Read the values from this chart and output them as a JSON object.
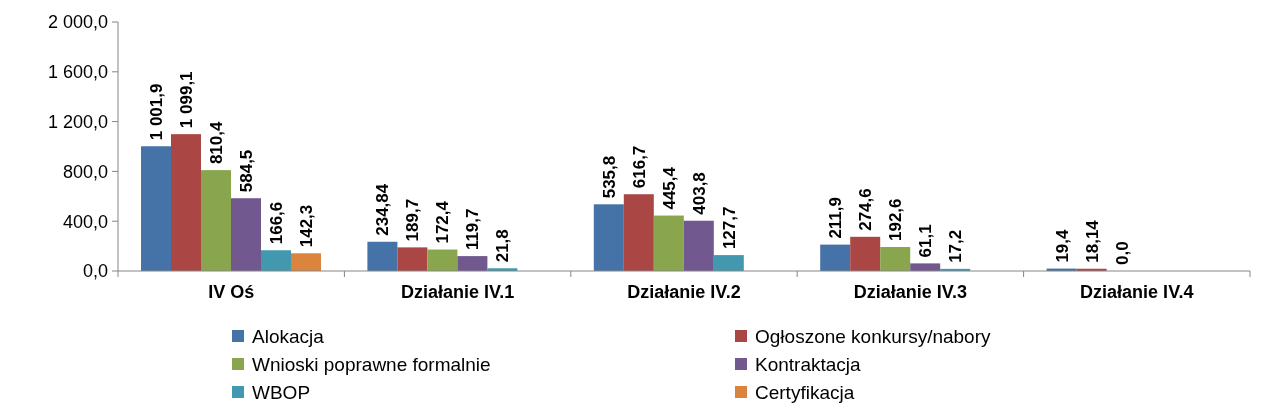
{
  "chart_data": {
    "type": "bar",
    "categories": [
      "IV Oś",
      "Działanie IV.1",
      "Działanie IV.2",
      "Działanie IV.3",
      "Działanie IV.4"
    ],
    "series": [
      {
        "name": "Alokacja",
        "color": "#4572a7",
        "values": [
          1001.9,
          234.84,
          535.8,
          211.9,
          19.4
        ],
        "value_labels": [
          "1 001,9",
          "234,84",
          "535,8",
          "211,9",
          "19,4"
        ]
      },
      {
        "name": "Ogłoszone konkursy/nabory",
        "color": "#aa4643",
        "values": [
          1099.1,
          189.7,
          616.7,
          274.6,
          18.14
        ],
        "value_labels": [
          "1 099,1",
          "189,7",
          "616,7",
          "274,6",
          "18,14"
        ]
      },
      {
        "name": "Wnioski poprawne formalnie",
        "color": "#89a54e",
        "values": [
          810.4,
          172.4,
          445.4,
          192.6,
          0
        ],
        "value_labels": [
          "810,4",
          "172,4",
          "445,4",
          "192,6",
          "0,0"
        ]
      },
      {
        "name": "Kontraktacja",
        "color": "#71588f",
        "values": [
          584.5,
          119.7,
          403.8,
          61.1,
          null
        ],
        "value_labels": [
          "584,5",
          "119,7",
          "403,8",
          "61,1",
          null
        ]
      },
      {
        "name": "WBOP",
        "color": "#4198af",
        "values": [
          166.6,
          21.8,
          127.7,
          17.2,
          null
        ],
        "value_labels": [
          "166,6",
          "21,8",
          "127,7",
          "17,2",
          null
        ]
      },
      {
        "name": "Certyfikacja",
        "color": "#db843d",
        "values": [
          142.3,
          null,
          null,
          null,
          null
        ],
        "value_labels": [
          "142,3",
          null,
          null,
          null,
          null
        ]
      }
    ],
    "ylim": [
      0,
      2000
    ],
    "yticks": [
      {
        "value": 0,
        "label": "0,0"
      },
      {
        "value": 400,
        "label": "400,0"
      },
      {
        "value": 800,
        "label": "800,0"
      },
      {
        "value": 1200,
        "label": "1 200,0"
      },
      {
        "value": 1600,
        "label": "1 600,0"
      },
      {
        "value": 2000,
        "label": "2 000,0"
      }
    ],
    "grid": false,
    "legend": "bottom"
  }
}
